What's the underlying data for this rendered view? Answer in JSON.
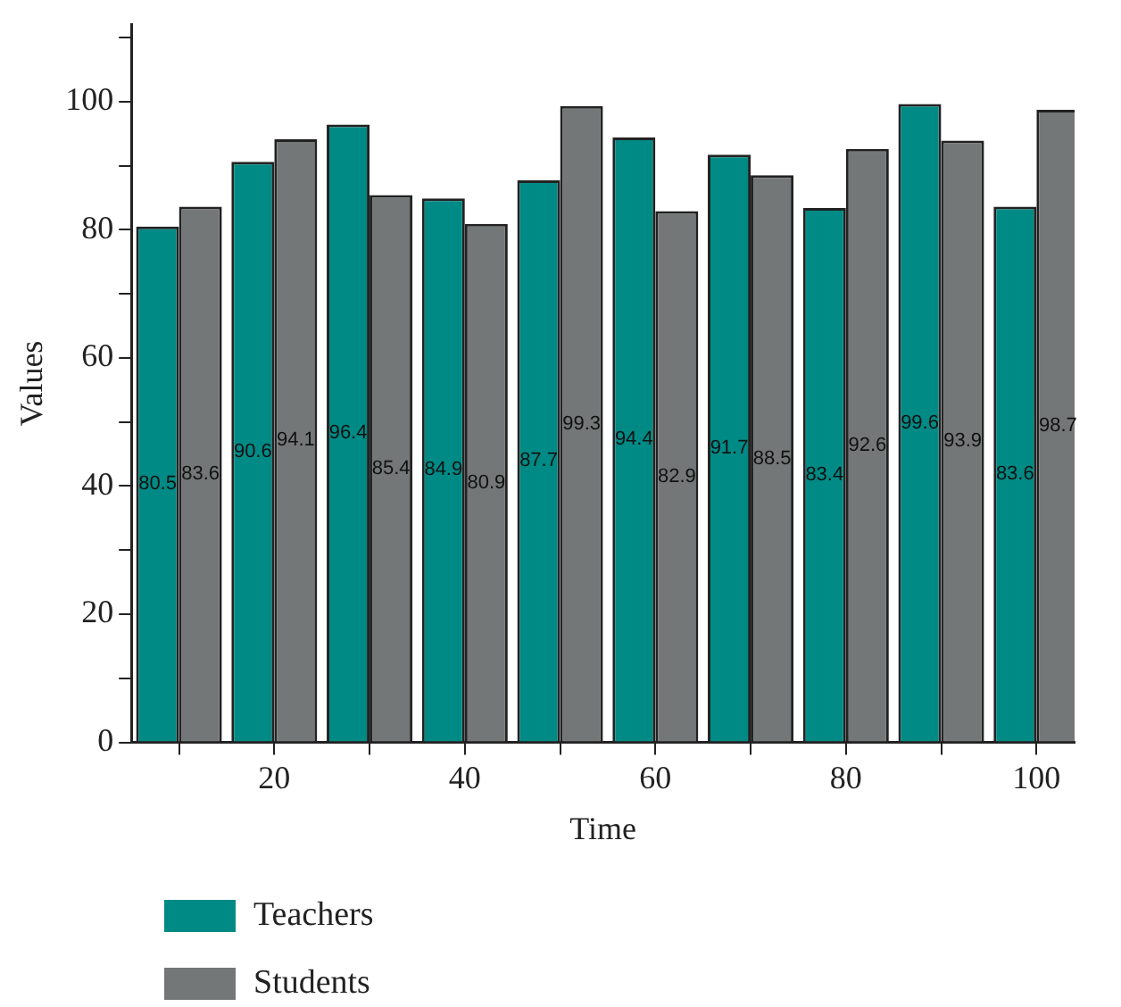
{
  "chart_data": {
    "type": "bar",
    "xlabel": "Time",
    "ylabel": "Values",
    "x": [
      10,
      20,
      30,
      40,
      50,
      60,
      70,
      80,
      90,
      100
    ],
    "series": [
      {
        "name": "Teachers",
        "color": "#008a85",
        "values": [
          80.5,
          90.6,
          96.4,
          84.9,
          87.7,
          94.4,
          91.7,
          83.4,
          99.6,
          83.6
        ]
      },
      {
        "name": "Students",
        "color": "#737778",
        "values": [
          83.6,
          94.1,
          85.4,
          80.9,
          99.3,
          82.9,
          88.5,
          92.6,
          93.9,
          98.7
        ]
      }
    ],
    "xlim": [
      5,
      104
    ],
    "xticks": [
      {
        "value": 10,
        "label": null
      },
      20,
      {
        "value": 30,
        "label": null
      },
      40,
      {
        "value": 50,
        "label": null
      },
      60,
      {
        "value": 70,
        "label": null
      },
      80,
      {
        "value": 90,
        "label": null
      },
      100
    ],
    "ylim": [
      0,
      112
    ],
    "yticks": [
      0,
      {
        "value": 10,
        "label": null
      },
      20,
      {
        "value": 30,
        "label": null
      },
      40,
      {
        "value": 50,
        "label": null
      },
      60,
      {
        "value": 70,
        "label": null
      },
      80,
      {
        "value": 90,
        "label": null
      },
      100,
      {
        "value": 110,
        "label": null
      }
    ],
    "data_labels": true,
    "grid": false,
    "legend": "bottom left"
  }
}
